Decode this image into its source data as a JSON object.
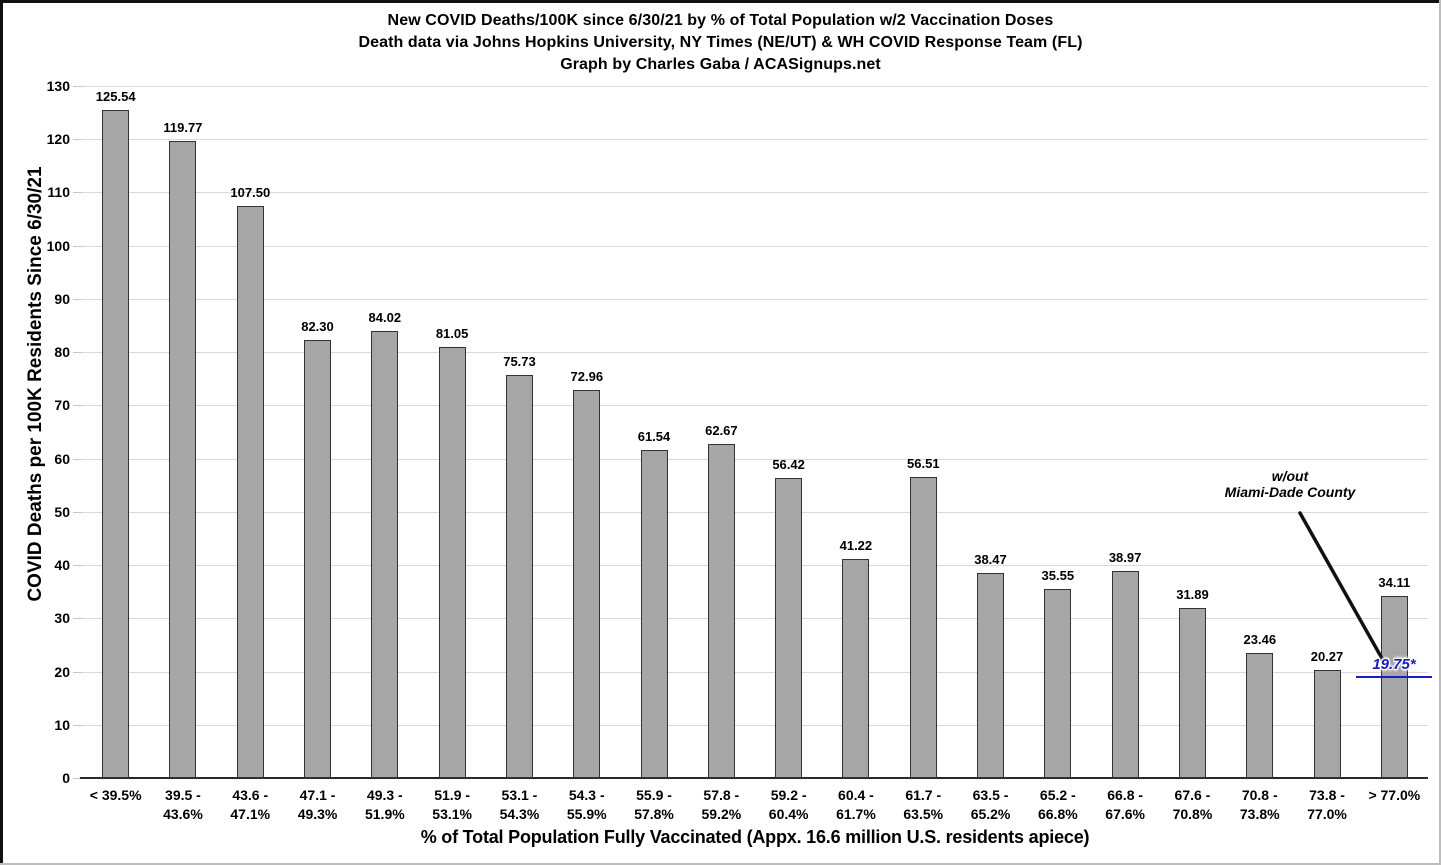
{
  "header": {
    "title": "New COVID Deaths/100K since 6/30/21 by % of Total Population w/2 Vaccination Doses",
    "subtitle": "Death data via Johns Hopkins University, NY Times (NE/UT) & WH COVID Response Team (FL)",
    "credit": "Graph by Charles Gaba / ACASignups.net"
  },
  "chart_data": {
    "type": "bar",
    "title": "New COVID Deaths/100K since 6/30/21 by % of Total Population w/2 Vaccination Doses",
    "subtitle": "Death data via Johns Hopkins University, NY Times (NE/UT) & WH COVID Response Team (FL)",
    "credit": "Graph by Charles Gaba / ACASignups.net",
    "xlabel": "% of Total Population Fully Vaccinated (Appx. 16.6 million U.S. residents apiece)",
    "ylabel": "COVID Deaths per 100K Residents Since 6/30/21",
    "ylim": [
      0,
      130
    ],
    "ytick_step": 10,
    "grid": true,
    "legend": "none",
    "categories": [
      "< 39.5%",
      "39.5 - 43.6%",
      "43.6 - 47.1%",
      "47.1 - 49.3%",
      "49.3 - 51.9%",
      "51.9 - 53.1%",
      "53.1 - 54.3%",
      "54.3 - 55.9%",
      "55.9 - 57.8%",
      "57.8 - 59.2%",
      "59.2 - 60.4%",
      "60.4 - 61.7%",
      "61.7 - 63.5%",
      "63.5 - 65.2%",
      "65.2 - 66.8%",
      "66.8 - 67.6%",
      "67.6 - 70.8%",
      "70.8 - 73.8%",
      "73.8 - 77.0%",
      "> 77.0%"
    ],
    "category_lines": [
      [
        "< 39.5%"
      ],
      [
        "39.5 -",
        "43.6%"
      ],
      [
        "43.6 -",
        "47.1%"
      ],
      [
        "47.1 -",
        "49.3%"
      ],
      [
        "49.3 -",
        "51.9%"
      ],
      [
        "51.9 -",
        "53.1%"
      ],
      [
        "53.1 -",
        "54.3%"
      ],
      [
        "54.3 -",
        "55.9%"
      ],
      [
        "55.9 -",
        "57.8%"
      ],
      [
        "57.8 -",
        "59.2%"
      ],
      [
        "59.2 -",
        "60.4%"
      ],
      [
        "60.4 -",
        "61.7%"
      ],
      [
        "61.7 -",
        "63.5%"
      ],
      [
        "63.5 -",
        "65.2%"
      ],
      [
        "65.2 -",
        "66.8%"
      ],
      [
        "66.8 -",
        "67.6%"
      ],
      [
        "67.6 -",
        "70.8%"
      ],
      [
        "70.8 -",
        "73.8%"
      ],
      [
        "73.8 -",
        "77.0%"
      ],
      [
        "> 77.0%"
      ]
    ],
    "values": [
      125.54,
      119.77,
      107.5,
      82.3,
      84.02,
      81.05,
      75.73,
      72.96,
      61.54,
      62.67,
      56.42,
      41.22,
      56.51,
      38.47,
      35.55,
      38.97,
      31.89,
      23.46,
      20.27,
      34.11
    ],
    "value_labels": [
      "125.54",
      "119.77",
      "107.50",
      "82.30",
      "84.02",
      "81.05",
      "75.73",
      "72.96",
      "61.54",
      "62.67",
      "56.42",
      "41.22",
      "56.51",
      "38.47",
      "35.55",
      "38.97",
      "31.89",
      "23.46",
      "20.27",
      "34.11"
    ],
    "annotation": {
      "line1": "w/out",
      "line2": "Miami-Dade County",
      "value_label": "19.75*",
      "value_without_miami_dade": 19.75,
      "applies_to_category": "> 77.0%"
    },
    "colors": {
      "bar_fill": "#a6a6a6",
      "bar_border": "#333333",
      "gridline": "#d9d9d9",
      "axis_line": "#2b2b2b",
      "text": "#000000",
      "annotation_blue": "#1c1cba"
    }
  }
}
